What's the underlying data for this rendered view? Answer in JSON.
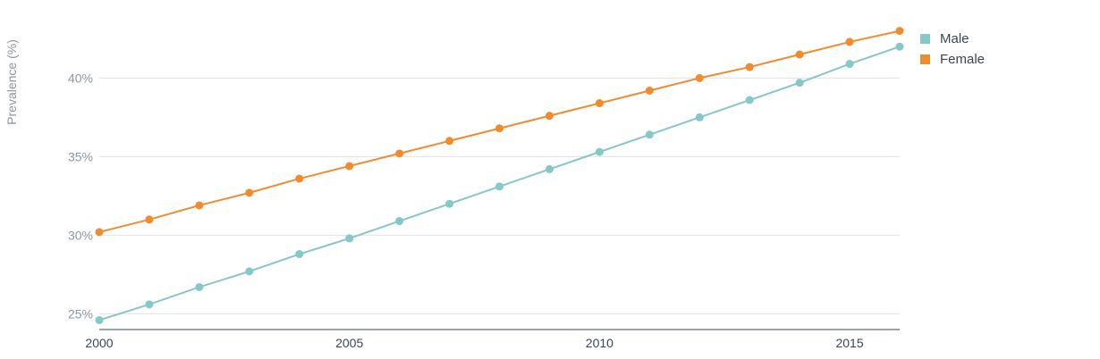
{
  "chart_data": {
    "type": "line",
    "ylabel": "Prevalence (%)",
    "xlabel": "",
    "xlim": [
      2000,
      2016
    ],
    "ylim": [
      24,
      44
    ],
    "y_ticks": [
      {
        "value": 25,
        "label": "25%"
      },
      {
        "value": 30,
        "label": "30%"
      },
      {
        "value": 35,
        "label": "35%"
      },
      {
        "value": 40,
        "label": "40%"
      }
    ],
    "x_ticks": [
      {
        "value": 2000,
        "label": "2000"
      },
      {
        "value": 2005,
        "label": "2005"
      },
      {
        "value": 2010,
        "label": "2010"
      },
      {
        "value": 2015,
        "label": "2015"
      }
    ],
    "grid": "horizontal",
    "legend_position": "top-right",
    "x": [
      2000,
      2001,
      2002,
      2003,
      2004,
      2005,
      2006,
      2007,
      2008,
      2009,
      2010,
      2011,
      2012,
      2013,
      2014,
      2015,
      2016
    ],
    "series": [
      {
        "name": "Male",
        "color": "#86c7c7",
        "values": [
          24.6,
          25.6,
          26.7,
          27.7,
          28.8,
          29.8,
          30.9,
          32.0,
          33.1,
          34.2,
          35.3,
          36.4,
          37.5,
          38.6,
          39.7,
          40.9,
          42.0
        ]
      },
      {
        "name": "Female",
        "color": "#f28a2e",
        "values": [
          30.2,
          31.0,
          31.9,
          32.7,
          33.6,
          34.4,
          35.2,
          36.0,
          36.8,
          37.6,
          38.4,
          39.2,
          40.0,
          40.7,
          41.5,
          42.3,
          43.0
        ]
      }
    ]
  }
}
